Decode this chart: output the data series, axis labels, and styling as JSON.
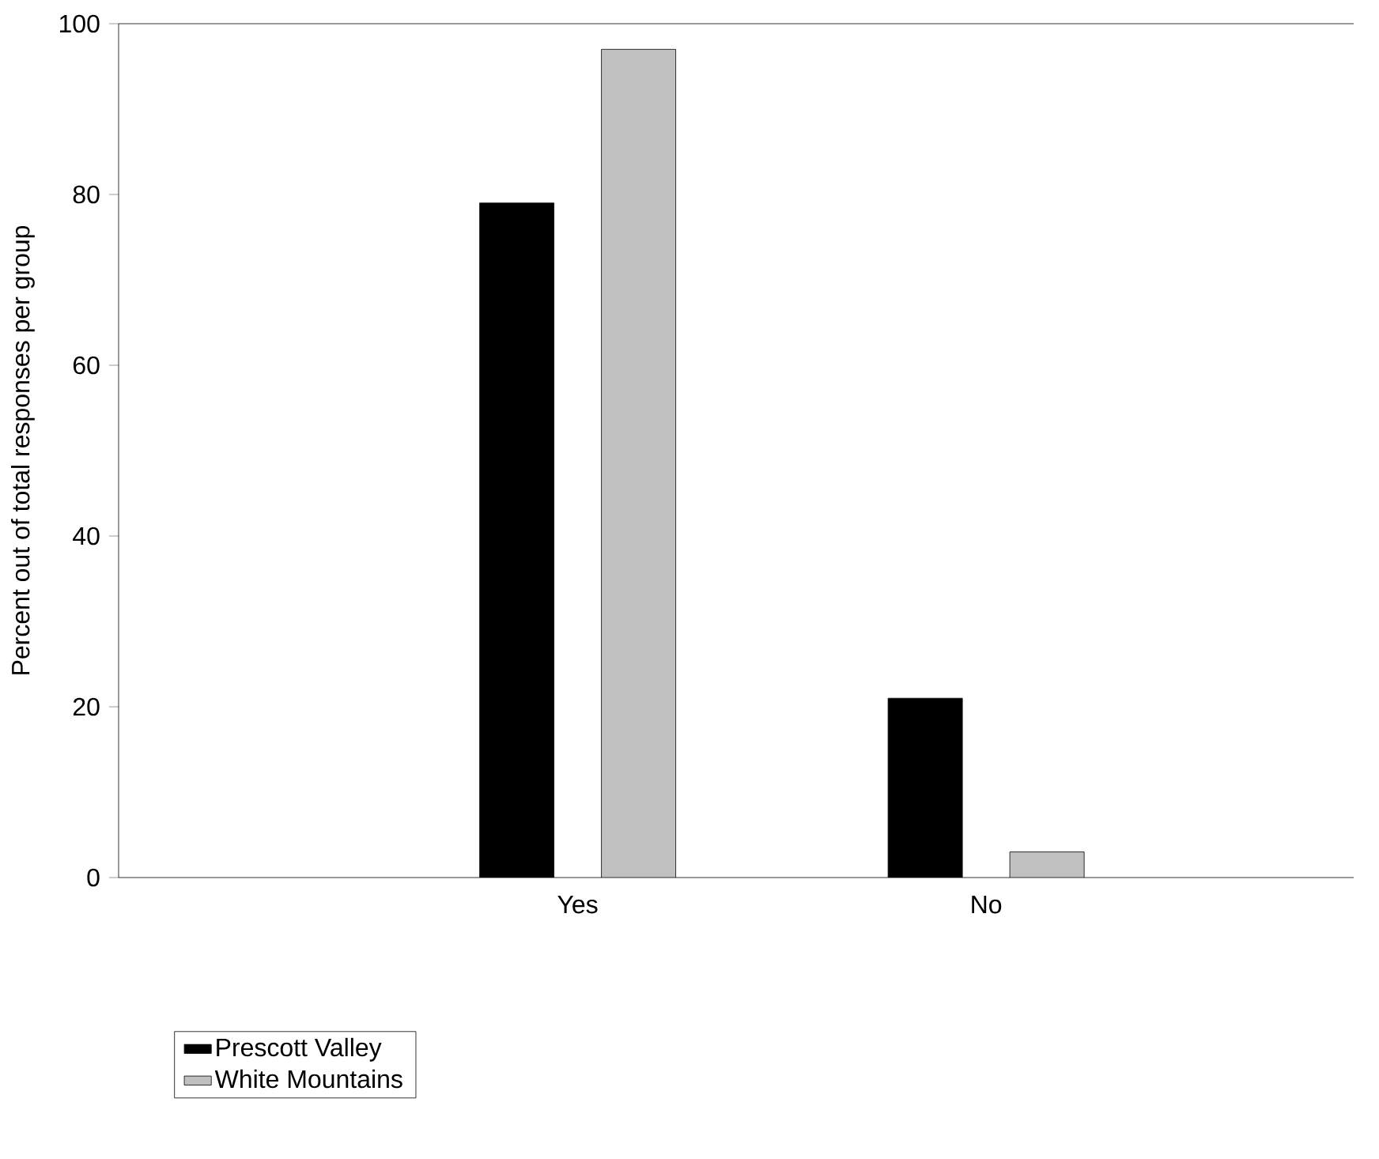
{
  "chart_data": {
    "type": "bar",
    "ylabel": "Percent out of total responses per group",
    "categories": [
      "Yes",
      "No"
    ],
    "series": [
      {
        "name": "Prescott Valley",
        "color": "#000000",
        "values": [
          79,
          21
        ]
      },
      {
        "name": "White Mountains",
        "color": "#c0c0c0",
        "values": [
          97,
          3
        ]
      }
    ],
    "ylim": [
      0,
      100
    ],
    "yticks": [
      0,
      20,
      40,
      60,
      80,
      100
    ],
    "legend": "bottom left",
    "grid": false
  }
}
